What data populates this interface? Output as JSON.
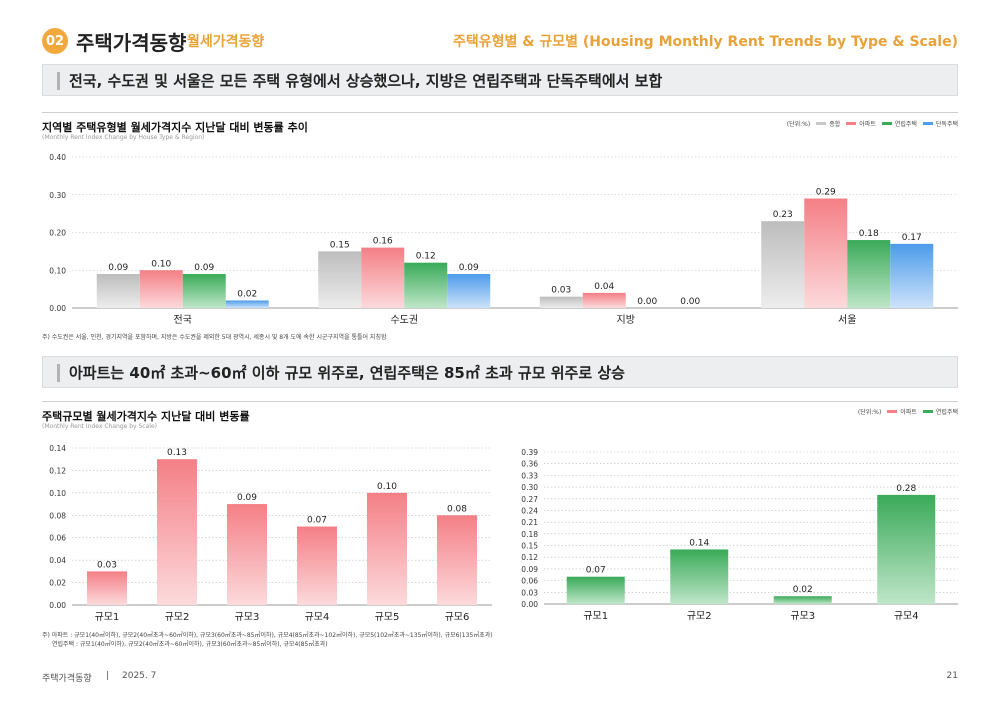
{
  "header": {
    "badge": "02",
    "title": "주택가격동향",
    "subtitle": "월세가격동향",
    "right_title": "주택유형별 & 규모별 (Housing Monthly Rent Trends by Type & Scale)"
  },
  "section1": {
    "headline": "전국, 수도권 및 서울은 모든 주택 유형에서 상승했으나, 지방은 연립주택과 단독주택에서 보합",
    "chart_title": "지역별 주택유형별 월세가격지수 지난달 대비 변동률 추이",
    "chart_subtitle": "(Monthly Rent Index Change by House Type & Region)",
    "unit": "(단위:%)",
    "note": "주) 수도권은 서울, 인천, 경기지역을 포함하며, 지방은 수도권을 제외한 5대 광역시, 세종시 및 8개 도에 속한 시군구지역을 통틀어 지칭함"
  },
  "section2": {
    "headline": "아파트는 40㎡ 초과~60㎡ 이하 규모 위주로, 연립주택은 85㎡ 초과 규모 위주로 상승",
    "chart_title": "주택규모별 월세가격지수 지난달 대비 변동률",
    "chart_subtitle": "(Monthly Rent Index Change by Scale)",
    "unit": "(단위:%)",
    "note_line1": "주) 아파트 : 규모1(40㎡이하), 규모2(40㎡초과~60㎡이하), 규모3(60㎡초과~85㎡이하), 규모4(85㎡초과~102㎡이하), 규모5(102㎡초과~135㎡이하), 규모6(135㎡초과)",
    "note_line2": "연립주택 : 규모1(40㎡이하), 규모2(40㎡초과~60㎡이하), 규모3(60㎡초과~85㎡이하), 규모4(85㎡초과)"
  },
  "footer": {
    "left": "주택가격동향",
    "sep": "|",
    "date": "2025. 7",
    "page": "21"
  },
  "colors": {
    "accent": "#f2a93b",
    "composite": "#c8c8c8",
    "apartment": "#f47f86",
    "row_house": "#3aaa58",
    "detached": "#4d9bea"
  },
  "chart_data": [
    {
      "type": "bar",
      "categories": [
        "전국",
        "수도권",
        "지방",
        "서울"
      ],
      "series": [
        {
          "name": "종합",
          "values": [
            0.09,
            0.15,
            0.03,
            0.23
          ]
        },
        {
          "name": "아파트",
          "values": [
            0.1,
            0.16,
            0.04,
            0.29
          ]
        },
        {
          "name": "연립주택",
          "values": [
            0.09,
            0.12,
            0.0,
            0.18
          ]
        },
        {
          "name": "단독주택",
          "values": [
            0.02,
            0.09,
            0.0,
            0.17
          ]
        }
      ],
      "ylim": [
        0,
        0.4
      ],
      "yticks": [
        "0.00",
        "0.10",
        "0.20",
        "0.30",
        "0.40"
      ],
      "legend": "top-right",
      "grid": true
    },
    {
      "type": "bar",
      "categories": [
        "규모1",
        "규모2",
        "규모3",
        "규모4",
        "규모5",
        "규모6"
      ],
      "series": [
        {
          "name": "아파트",
          "values": [
            0.03,
            0.13,
            0.09,
            0.07,
            0.1,
            0.08
          ]
        }
      ],
      "ylim": [
        0,
        0.14
      ],
      "yticks": [
        "0.00",
        "0.02",
        "0.04",
        "0.06",
        "0.08",
        "0.10",
        "0.12",
        "0.14"
      ],
      "grid": true
    },
    {
      "type": "bar",
      "categories": [
        "규모1",
        "규모2",
        "규모3",
        "규모4"
      ],
      "series": [
        {
          "name": "연립주택",
          "values": [
            0.07,
            0.14,
            0.02,
            0.28
          ]
        }
      ],
      "ylim": [
        0,
        0.39
      ],
      "yticks": [
        "0.00",
        "0.03",
        "0.06",
        "0.09",
        "0.12",
        "0.15",
        "0.18",
        "0.21",
        "0.24",
        "0.27",
        "0.30",
        "0.33",
        "0.36",
        "0.39"
      ],
      "grid": true
    }
  ]
}
